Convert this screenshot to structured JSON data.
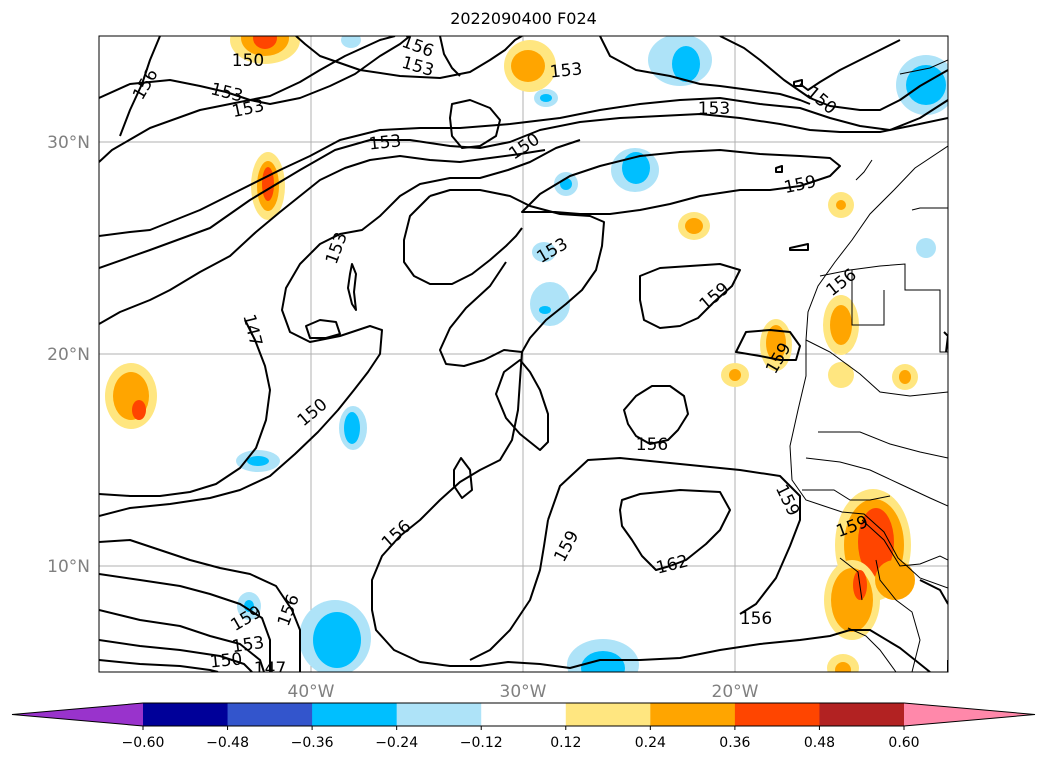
{
  "title": "2022090400 F024",
  "map": {
    "lat_labels": [
      "30°N",
      "20°N",
      "10°N"
    ],
    "lon_labels": [
      "40°W",
      "30°W",
      "20°W"
    ],
    "contour_labels": [
      "150",
      "156",
      "153",
      "156",
      "153",
      "153",
      "153",
      "150",
      "153",
      "153",
      "150",
      "159",
      "153",
      "153",
      "156",
      "147",
      "159",
      "159",
      "150",
      "156",
      "156",
      "159",
      "159",
      "162",
      "156",
      "159",
      "153",
      "150",
      "147",
      "156",
      "159"
    ]
  },
  "colorbar": {
    "ticks": [
      "−0.60",
      "−0.48",
      "−0.36",
      "−0.24",
      "−0.12",
      "0.12",
      "0.24",
      "0.36",
      "0.48",
      "0.60"
    ],
    "colors": [
      "#9933cc",
      "#000099",
      "#3355cc",
      "#00bfff",
      "#aee3f8",
      "#ffffff",
      "#ffe680",
      "#ffa500",
      "#ff4500",
      "#b22222",
      "#ff88aa"
    ]
  }
}
